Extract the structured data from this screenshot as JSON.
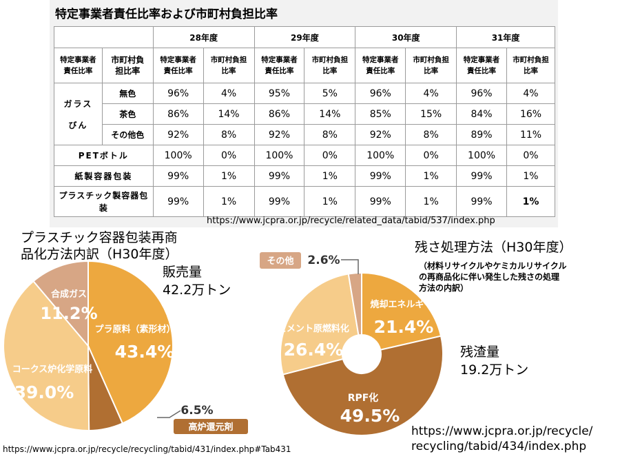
{
  "table": {
    "title": "特定事業者責任比率および市町村負担比率",
    "years": [
      "28年度",
      "29年度",
      "30年度",
      "31年度"
    ],
    "col_group_header_1": "特定事業者責任比率",
    "col_group_header_2": "市町村負担比率",
    "sub_header_1": "特定事業者責任比率",
    "sub_header_2": "市町村負担比率",
    "rows": [
      {
        "group": "ガラスびん",
        "name": "無色",
        "values": [
          "96%",
          "4%",
          "95%",
          "5%",
          "96%",
          "4%",
          "96%",
          "4%"
        ]
      },
      {
        "group": "ガラスびん",
        "name": "茶色",
        "values": [
          "86%",
          "14%",
          "86%",
          "14%",
          "85%",
          "15%",
          "84%",
          "16%"
        ]
      },
      {
        "group": "ガラスびん",
        "name": "その他色",
        "values": [
          "92%",
          "8%",
          "92%",
          "8%",
          "92%",
          "8%",
          "89%",
          "11%"
        ]
      },
      {
        "name": "PETボトル",
        "values": [
          "100%",
          "0%",
          "100%",
          "0%",
          "100%",
          "0%",
          "100%",
          "0%"
        ]
      },
      {
        "name": "紙製容器包装",
        "values": [
          "99%",
          "1%",
          "99%",
          "1%",
          "99%",
          "1%",
          "99%",
          "1%"
        ]
      },
      {
        "name": "プラスチック製容器包装",
        "values": [
          "99%",
          "1%",
          "99%",
          "1%",
          "99%",
          "1%",
          "99%",
          "1%"
        ]
      }
    ],
    "source": "https://www.jcpra.or.jp/recycle/related_data/tabid/537/index.php"
  },
  "chart_data": [
    {
      "type": "pie",
      "title": "プラスチック容器包装再商品化方法内訳（H30年度）",
      "subtitle": "販売量 42.2万トン",
      "subtitle_line1": "販売量",
      "subtitle_line2": "42.2万トン",
      "title_line1": "プラスチック容器包装再商",
      "title_line2": "品化方法内訳（H30年度）",
      "categories": [
        "プラ原料（素形材）",
        "高炉還元剤",
        "コークス炉化学原料",
        "合成ガス"
      ],
      "values": [
        43.4,
        6.5,
        39.0,
        11.2
      ],
      "value_labels": [
        "43.4%",
        "6.5%",
        "39.0%",
        "11.2%"
      ],
      "colors": [
        "#eda83f",
        "#b06f32",
        "#f6cc8a",
        "#d7a685"
      ],
      "source": "https://www.jcpra.or.jp/recycle/recycling/tabid/431/index.php#Tab431"
    },
    {
      "type": "pie",
      "title": "残さ処理方法（H30年度）",
      "note": "（材料リサイクルやケミカルリサイクルの再商品化に伴い発生した残さの処理方法の内訳）",
      "note_line1": "（材料リサイクルやケミカルリサイクル",
      "note_line2": "の再商品化に伴い発生した残さの処理",
      "note_line3": "方法の内訳）",
      "subtitle": "残渣量 19.2万トン",
      "subtitle_line1": "残渣量",
      "subtitle_line2": "19.2万トン",
      "categories": [
        "焼却エネルギー回収",
        "RPF化",
        "セメント原燃料化",
        "その他"
      ],
      "values": [
        21.4,
        49.5,
        26.4,
        2.6
      ],
      "value_labels": [
        "21.4%",
        "49.5%",
        "26.4%",
        "2.6%"
      ],
      "colors": [
        "#eda83f",
        "#b06f32",
        "#f6cc8a",
        "#d7a685"
      ],
      "source_line1": "https://www.jcpra.or.jp/recycle/",
      "source_line2": "recycling/tabid/434/index.php"
    }
  ]
}
